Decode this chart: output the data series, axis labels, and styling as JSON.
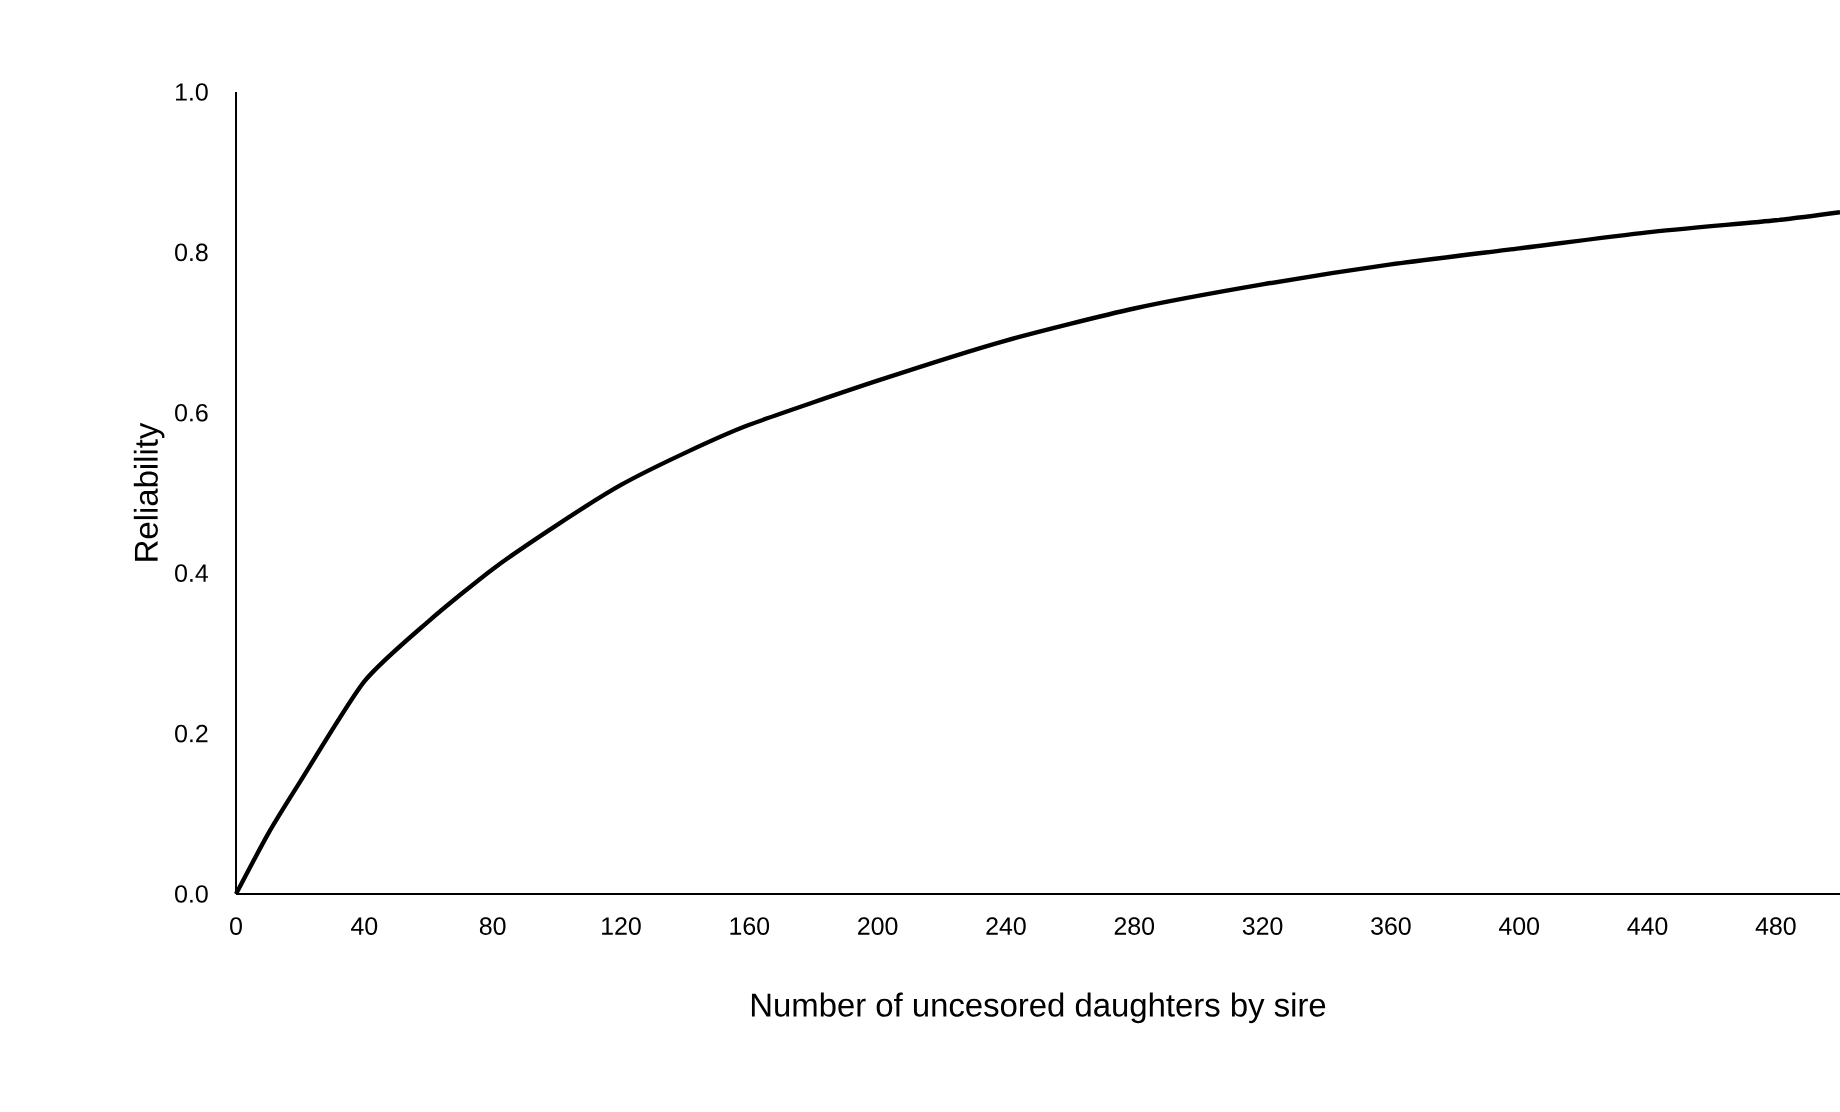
{
  "chart_data": {
    "type": "line",
    "xlabel": "Number of uncesored daughters by sire",
    "ylabel": "Reliability",
    "x": [
      0,
      10,
      20,
      40,
      60,
      80,
      100,
      120,
      140,
      160,
      200,
      240,
      280,
      320,
      360,
      400,
      440,
      480,
      500
    ],
    "series": [
      {
        "color": "#000000",
        "values": [
          0,
          0.075,
          0.14,
          0.265,
          0.34,
          0.405,
          0.46,
          0.51,
          0.55,
          0.585,
          0.64,
          0.69,
          0.73,
          0.76,
          0.785,
          0.805,
          0.825,
          0.84,
          0.85
        ]
      }
    ],
    "xlim": [
      0,
      500
    ],
    "ylim": [
      0,
      1
    ],
    "xticks": [
      0,
      40,
      80,
      120,
      160,
      200,
      240,
      280,
      320,
      360,
      400,
      440,
      480
    ],
    "yticks": [
      {
        "value": 0,
        "label": "0.0"
      },
      {
        "value": 0.2,
        "label": "0.2"
      },
      {
        "value": 0.4,
        "label": "0.4"
      },
      {
        "value": 0.6,
        "label": "0.6"
      },
      {
        "value": 0.8,
        "label": "0.8"
      },
      {
        "value": 1,
        "label": "1.0"
      }
    ],
    "grid": false,
    "marker": "none",
    "line_style": "solid"
  }
}
